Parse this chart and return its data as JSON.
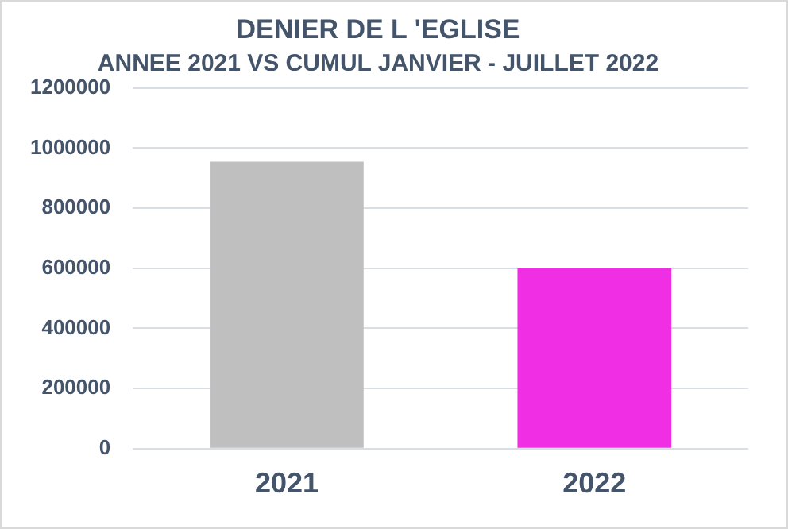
{
  "chart_data": {
    "type": "bar",
    "title": "DENIER DE L 'EGLISE",
    "subtitle": "ANNEE 2021 VS CUMUL JANVIER - JUILLET 2022",
    "categories": [
      "2021",
      "2022"
    ],
    "values": [
      955000,
      600000
    ],
    "colors": [
      "#bfbfbf",
      "#f02fe4"
    ],
    "ylim": [
      0,
      1200000
    ],
    "yticks": [
      0,
      200000,
      400000,
      600000,
      800000,
      1000000,
      1200000
    ],
    "grid": "y",
    "legend": false
  }
}
